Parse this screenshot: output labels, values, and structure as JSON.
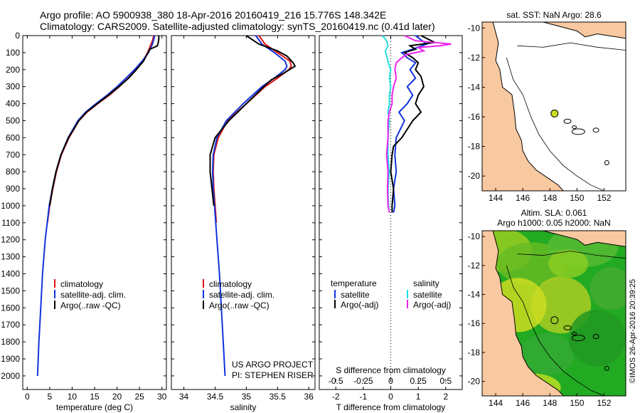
{
  "header": {
    "line1": "Argo profile: AO 5900938_380 18-Apr-2016 20160419_216 15.776S 148.342E",
    "line2": "Climatology: CARS2009. Satellite-adjusted climatology: synTS_20160419.nc (0.41d later)"
  },
  "colors": {
    "climatology": "#dd1111",
    "satellite": "#1133dd",
    "argo": "#000000",
    "sal_satellite": "#22dddd",
    "sal_argo": "#ee22ee",
    "land": "#f8c8a0",
    "sst_marker": "#ccdd22"
  },
  "watermark": "©IMOS 26-Apr-2016 20:39:25",
  "project": {
    "line1": "US ARGO PROJECT",
    "line2": "PI: STEPHEN RISER"
  },
  "chart_data": [
    {
      "type": "line",
      "id": "temperature",
      "xlabel": "temperature (deg C)",
      "ylabel": "",
      "xlim": [
        -1,
        31
      ],
      "ylim": [
        0,
        2080
      ],
      "y_inverted": true,
      "xticks": [
        0,
        5,
        10,
        15,
        20,
        25,
        30
      ],
      "yticks": [
        0,
        100,
        200,
        300,
        400,
        500,
        600,
        700,
        800,
        900,
        1000,
        1100,
        1200,
        1300,
        1400,
        1500,
        1600,
        1700,
        1800,
        1900,
        2000
      ],
      "legend": [
        "climatology",
        "satellite-adj. clim.",
        "Argo(..raw -QC)"
      ],
      "legend_placement": "lower-center",
      "series": [
        {
          "name": "climatology",
          "color_key": "climatology",
          "depth": [
            0,
            30,
            50,
            100,
            150,
            200,
            250,
            300,
            350,
            400,
            450,
            500,
            600,
            700,
            800,
            900,
            1000,
            1100
          ],
          "values": [
            28.2,
            27.9,
            27.6,
            26.8,
            25.8,
            24.3,
            22.5,
            20.5,
            18.3,
            15.7,
            13.3,
            11.5,
            9.3,
            7.6,
            6.5,
            5.7,
            5.0,
            4.5
          ]
        },
        {
          "name": "satellite-adj. clim.",
          "color_key": "satellite",
          "depth": [
            0,
            30,
            50,
            100,
            150,
            200,
            250,
            300,
            350,
            400,
            450,
            500,
            600,
            700,
            800,
            900,
            1000,
            1200,
            1400,
            1600,
            1800,
            2000
          ],
          "values": [
            28.4,
            28.1,
            27.9,
            27.0,
            25.6,
            23.9,
            22.0,
            20.0,
            17.8,
            15.3,
            13.0,
            11.3,
            9.1,
            7.5,
            6.4,
            5.6,
            4.9,
            4.0,
            3.4,
            3.0,
            2.6,
            2.3
          ]
        },
        {
          "name": "Argo(..raw -QC)",
          "color_key": "argo",
          "depth": [
            0,
            20,
            40,
            60,
            70,
            80,
            100,
            150,
            200,
            250,
            300,
            350,
            400,
            450,
            500,
            600,
            700,
            800,
            900,
            1000
          ],
          "values": [
            29.3,
            29.3,
            29.2,
            29.0,
            28.2,
            27.3,
            26.9,
            25.9,
            24.3,
            22.6,
            20.4,
            18.1,
            15.6,
            13.2,
            11.5,
            9.2,
            7.5,
            6.4,
            5.6,
            5.0
          ]
        }
      ]
    },
    {
      "type": "line",
      "id": "salinity",
      "xlabel": "salinity",
      "ylabel": "",
      "xlim": [
        33.8,
        36.1
      ],
      "ylim": [
        0,
        2080
      ],
      "y_inverted": true,
      "xticks": [
        34,
        34.5,
        35,
        35.5,
        36
      ],
      "legend": [
        "climatology",
        "satellite-adj. clim.",
        "Argo(..raw -QC)"
      ],
      "legend_placement": "lower-center",
      "series": [
        {
          "name": "climatology",
          "color_key": "climatology",
          "depth": [
            0,
            50,
            100,
            150,
            180,
            200,
            250,
            300,
            400,
            500,
            600,
            700,
            800,
            900,
            1000,
            1100
          ],
          "values": [
            35.2,
            35.3,
            35.5,
            35.7,
            35.72,
            35.68,
            35.5,
            35.3,
            35.0,
            34.7,
            34.55,
            34.48,
            34.47,
            34.48,
            34.5,
            34.52
          ]
        },
        {
          "name": "satellite-adj. clim.",
          "color_key": "satellite",
          "depth": [
            0,
            50,
            100,
            150,
            180,
            200,
            250,
            300,
            400,
            500,
            600,
            700,
            800,
            900,
            1000,
            1200,
            1400,
            1600,
            1800,
            2000
          ],
          "values": [
            35.15,
            35.25,
            35.45,
            35.62,
            35.65,
            35.62,
            35.45,
            35.25,
            34.95,
            34.68,
            34.53,
            34.47,
            34.46,
            34.47,
            34.49,
            34.53,
            34.57,
            34.6,
            34.63,
            34.66
          ]
        },
        {
          "name": "Argo(..raw -QC)",
          "color_key": "argo",
          "depth": [
            0,
            50,
            90,
            120,
            160,
            180,
            220,
            260,
            300,
            400,
            500,
            600,
            700,
            800,
            900,
            1000
          ],
          "values": [
            35.0,
            35.2,
            35.5,
            35.65,
            35.75,
            35.78,
            35.6,
            35.4,
            35.28,
            35.0,
            34.72,
            34.5,
            34.42,
            34.42,
            34.45,
            34.48
          ]
        }
      ]
    },
    {
      "type": "line",
      "id": "differences",
      "xlabel": "T difference from climatology",
      "xlabel_top": "S difference from climatology",
      "xlim": [
        -2.6,
        2.6
      ],
      "xticks": [
        -2,
        -1,
        0,
        1,
        2
      ],
      "x2ticks": [
        -0.5,
        -0.25,
        0,
        0.25,
        0.5
      ],
      "x2tick_labels": [
        "-0.5",
        "-0.25",
        "0",
        "0.25",
        "0.5"
      ],
      "ylim": [
        0,
        2080
      ],
      "y_inverted": true,
      "legend_temperature_title": "temperature",
      "legend_salinity_title": "salinity",
      "legend": [
        "satellite",
        "Argo(-adj)",
        "satellite",
        "Argo(-adj)"
      ],
      "legend_placement": "lower-center",
      "series": [
        {
          "name": "satellite",
          "group": "temperature",
          "color_key": "satellite",
          "depth": [
            0,
            50,
            80,
            100,
            130,
            160,
            200,
            250,
            300,
            350,
            400,
            450,
            500,
            600,
            700,
            800,
            900,
            1000,
            1040
          ],
          "values": [
            0.9,
            1.3,
            0.8,
            0.4,
            0.6,
            0.9,
            0.7,
            0.9,
            0.6,
            0.8,
            0.6,
            0.3,
            0.5,
            0.2,
            0.15,
            0.2,
            0.1,
            0.15,
            0.1
          ]
        },
        {
          "name": "Argo(-adj)",
          "group": "temperature",
          "color_key": "argo",
          "depth": [
            0,
            40,
            60,
            80,
            100,
            130,
            160,
            200,
            240,
            300,
            350,
            400,
            450,
            500,
            550,
            600,
            650,
            700,
            800,
            900,
            1000,
            1040
          ],
          "values": [
            1.1,
            1.6,
            0.7,
            0.9,
            0.5,
            0.8,
            1.0,
            0.9,
            1.1,
            1.2,
            1.0,
            0.9,
            1.1,
            0.8,
            0.6,
            0.4,
            0.1,
            0.05,
            0.0,
            0.1,
            0.05,
            0.05
          ]
        },
        {
          "name": "satellite",
          "group": "salinity",
          "color_key": "sal_satellite",
          "depth": [
            0,
            30,
            60,
            90,
            120,
            150,
            180,
            200,
            250,
            300,
            350,
            400,
            450,
            500,
            600,
            700,
            800,
            900,
            1000,
            1040
          ],
          "values": [
            -0.3,
            -0.15,
            -0.1,
            -0.2,
            -0.15,
            -0.1,
            -0.05,
            0.0,
            -0.05,
            0.0,
            -0.05,
            -0.05,
            -0.1,
            -0.05,
            -0.1,
            -0.1,
            -0.05,
            -0.1,
            -0.08,
            -0.05
          ]
        },
        {
          "name": "Argo(-adj)",
          "group": "salinity",
          "color_key": "sal_argo",
          "depth": [
            0,
            30,
            50,
            60,
            70,
            90,
            110,
            130,
            160,
            200,
            250,
            300,
            350,
            400,
            450,
            500,
            600,
            700,
            800,
            900,
            1000,
            1040
          ],
          "values": [
            0.5,
            0.9,
            2.2,
            1.8,
            1.0,
            1.2,
            0.6,
            0.4,
            0.2,
            0.15,
            0.2,
            0.1,
            0.05,
            0.05,
            -0.05,
            -0.1,
            -0.1,
            -0.15,
            -0.1,
            -0.12,
            -0.1,
            -0.05
          ]
        }
      ]
    }
  ],
  "maps": {
    "top": {
      "title": "sat. SST: NaN Argo: 28.6",
      "xticks": [
        144,
        146,
        148,
        150,
        152
      ],
      "yticks": [
        -10,
        -12,
        -14,
        -16,
        -18,
        -20
      ],
      "xlim": [
        143,
        153.6
      ],
      "ylim": [
        -21,
        -9.6
      ],
      "argo_position": {
        "lon": 148.342,
        "lat": -15.776
      }
    },
    "bottom": {
      "title1": "Altim. SLA: 0.061",
      "title2": "Argo h1000: 0.05 h2000: NaN",
      "xticks": [
        144,
        146,
        148,
        150,
        152
      ],
      "yticks": [
        -10,
        -12,
        -14,
        -16,
        -18,
        -20
      ],
      "xlim": [
        143,
        153.6
      ],
      "ylim": [
        -21,
        -9.6
      ],
      "argo_position": {
        "lon": 148.342,
        "lat": -15.776
      }
    }
  }
}
